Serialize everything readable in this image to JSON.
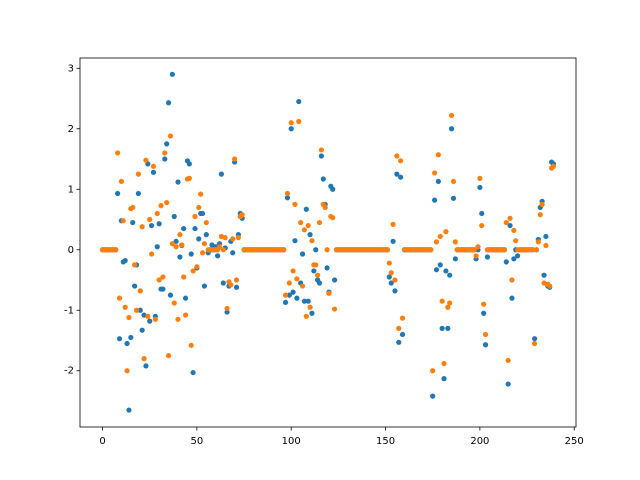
{
  "chart_data": {
    "type": "scatter",
    "x": [
      0,
      1,
      2,
      3,
      4,
      5,
      6,
      7,
      8,
      9,
      10,
      11,
      12,
      13,
      14,
      15,
      16,
      17,
      18,
      19,
      20,
      21,
      22,
      23,
      24,
      25,
      26,
      27,
      28,
      29,
      30,
      31,
      32,
      33,
      34,
      35,
      36,
      37,
      38,
      39,
      40,
      41,
      42,
      43,
      44,
      45,
      46,
      47,
      48,
      49,
      50,
      51,
      52,
      53,
      54,
      55,
      56,
      57,
      58,
      59,
      60,
      61,
      62,
      63,
      64,
      65,
      66,
      67,
      68,
      69,
      70,
      71,
      72,
      73,
      74,
      75,
      76,
      77,
      78,
      79,
      80,
      81,
      82,
      83,
      84,
      85,
      86,
      87,
      88,
      89,
      90,
      91,
      92,
      93,
      94,
      95,
      96,
      97,
      98,
      99,
      100,
      101,
      102,
      103,
      104,
      105,
      106,
      107,
      108,
      109,
      110,
      111,
      112,
      113,
      114,
      115,
      116,
      117,
      118,
      119,
      120,
      121,
      122,
      123,
      124,
      125,
      126,
      127,
      128,
      129,
      130,
      131,
      132,
      133,
      134,
      135,
      136,
      137,
      138,
      139,
      140,
      141,
      142,
      143,
      144,
      145,
      146,
      147,
      148,
      149,
      150,
      151,
      152,
      153,
      154,
      155,
      156,
      157,
      158,
      159,
      160,
      161,
      162,
      163,
      164,
      165,
      166,
      167,
      168,
      169,
      170,
      171,
      172,
      173,
      174,
      175,
      176,
      177,
      178,
      179,
      180,
      181,
      182,
      183,
      184,
      185,
      186,
      187,
      188,
      189,
      190,
      191,
      192,
      193,
      194,
      195,
      196,
      197,
      198,
      199,
      200,
      201,
      202,
      203,
      204,
      205,
      206,
      207,
      208,
      209,
      210,
      211,
      212,
      213,
      214,
      215,
      216,
      217,
      218,
      219,
      220,
      221,
      222,
      223,
      224,
      225,
      226,
      227,
      228,
      229,
      230,
      231,
      232,
      233,
      234,
      235,
      236,
      237,
      238,
      239
    ],
    "series": [
      {
        "color": "#1f77b4",
        "values": [
          0,
          0,
          0,
          0,
          0,
          0,
          0,
          0,
          0.93,
          -1.47,
          0.48,
          -0.2,
          -0.18,
          -1.55,
          -2.65,
          -1.45,
          0.45,
          -0.6,
          -0.25,
          0.93,
          -1.0,
          -1.33,
          -1.08,
          -1.92,
          1.42,
          -1.18,
          0.4,
          1.28,
          -1.1,
          0.05,
          0.43,
          -0.65,
          -0.65,
          1.5,
          1.75,
          2.43,
          -0.75,
          2.9,
          0.55,
          0.14,
          1.12,
          -0.12,
          0.07,
          0.35,
          -0.8,
          1.47,
          1.42,
          -0.07,
          -2.03,
          0.35,
          -0.3,
          0.18,
          0.6,
          0.6,
          -0.6,
          0.25,
          -0.05,
          0,
          0.08,
          0,
          0.05,
          -0.1,
          0.1,
          1.25,
          -0.55,
          0.03,
          -1.03,
          -0.6,
          0.14,
          -0.05,
          1.45,
          -0.62,
          0.25,
          0.6,
          0.52,
          0,
          0,
          0,
          0,
          0,
          0,
          0,
          0,
          0,
          0,
          0,
          0,
          0,
          0,
          0,
          0,
          0,
          0,
          0,
          0,
          0,
          0,
          -0.87,
          0.86,
          -0.75,
          2.0,
          -0.7,
          0.15,
          -0.8,
          2.45,
          -0.55,
          -0.07,
          -0.85,
          0.67,
          -0.85,
          0.25,
          -1.05,
          -0.35,
          0,
          -0.5,
          -0.55,
          1.55,
          1.17,
          0.75,
          -0.3,
          -0.7,
          1.05,
          1.0,
          -0.5,
          0,
          0,
          0,
          0,
          0,
          0,
          0,
          0,
          0,
          0,
          0,
          0,
          0,
          0,
          0,
          0,
          0,
          0,
          0,
          0,
          0,
          0,
          0,
          0,
          0,
          0,
          0,
          0,
          -0.45,
          -0.55,
          0.14,
          -0.68,
          1.25,
          -1.53,
          1.2,
          -1.4,
          0,
          0,
          0,
          0,
          0,
          0,
          0,
          0,
          0,
          0,
          0,
          0,
          0,
          0,
          0,
          -2.42,
          0.82,
          -0.33,
          1.13,
          -0.25,
          -1.3,
          -2.13,
          -0.35,
          -1.3,
          -0.42,
          2.0,
          0.85,
          -0.15,
          0,
          0,
          0,
          0,
          0,
          0,
          0,
          0,
          0,
          0,
          -0.15,
          0,
          1.03,
          0.6,
          -1.05,
          -1.57,
          -0.12,
          0,
          0,
          0,
          0,
          0,
          0,
          0,
          0,
          0,
          -0.2,
          -2.22,
          0.4,
          -0.8,
          -0.15,
          0,
          -0.1,
          0,
          0,
          0,
          0,
          0,
          0,
          0,
          0,
          -1.47,
          0,
          0.17,
          0.7,
          0.8,
          -0.42,
          0.22,
          -0.6,
          -0.62,
          1.45,
          1.42
        ]
      },
      {
        "color": "#ff7f0e",
        "values": [
          0,
          0,
          0,
          0,
          0,
          0,
          0,
          0,
          1.6,
          -0.8,
          1.13,
          0.48,
          -0.95,
          -2.0,
          -1.12,
          0.68,
          0.7,
          -0.25,
          -1.0,
          1.25,
          -0.68,
          0.38,
          -1.8,
          1.48,
          -1.1,
          0.5,
          -0.07,
          1.38,
          -1.15,
          0.6,
          -0.5,
          0.73,
          -0.45,
          1.6,
          0.78,
          -1.75,
          1.88,
          0.1,
          -0.88,
          0.05,
          -1.15,
          0.25,
          0.08,
          -0.45,
          -1.08,
          1.17,
          1.18,
          -1.58,
          -0.35,
          0.55,
          -0.28,
          0.7,
          0.92,
          -0.05,
          0.1,
          0.45,
          0,
          0,
          0,
          0,
          0,
          0,
          0.05,
          0.22,
          0,
          0.2,
          -0.97,
          -0.53,
          -0.58,
          0.18,
          1.5,
          -0.5,
          0.2,
          0.55,
          0.58,
          0,
          0,
          0,
          0,
          0,
          0,
          0,
          0,
          0,
          0,
          0,
          0,
          0,
          0,
          0,
          0,
          0,
          0,
          0,
          0,
          0,
          0,
          -0.75,
          0.93,
          -0.55,
          2.1,
          -0.35,
          0.75,
          -0.48,
          2.12,
          0.45,
          -0.6,
          0.33,
          -1.1,
          0.4,
          -0.95,
          0.15,
          -0.25,
          -0.25,
          -0.42,
          0.45,
          1.65,
          0.75,
          0.7,
          0,
          -0.72,
          0.55,
          0.53,
          -0.98,
          0,
          0,
          0,
          0,
          0,
          0,
          0,
          0,
          0,
          0,
          0,
          0,
          0,
          0,
          0,
          0,
          0,
          0,
          0,
          0,
          0,
          0,
          0,
          0,
          0,
          0,
          0,
          0,
          -0.22,
          -0.38,
          0.42,
          -0.5,
          1.55,
          -1.3,
          1.47,
          -1.13,
          0,
          0,
          0,
          0,
          0,
          0,
          0,
          0,
          0,
          0,
          0,
          0,
          0,
          0,
          0,
          -2.0,
          1.27,
          0.13,
          1.57,
          0.22,
          -0.85,
          -1.88,
          0.3,
          -0.95,
          -0.88,
          2.22,
          1.13,
          0.13,
          0,
          0,
          0,
          0,
          0,
          0,
          0,
          0,
          0,
          0,
          -0.1,
          0.05,
          1.18,
          0.4,
          -0.9,
          -1.4,
          0,
          0,
          0,
          0,
          0,
          0,
          0,
          0,
          0,
          0,
          0.45,
          -1.83,
          0.52,
          -0.5,
          0.32,
          0.15,
          0,
          0,
          0,
          0,
          0,
          0,
          0,
          0,
          0,
          -1.55,
          0,
          0.13,
          0.58,
          0.75,
          -0.55,
          0.07,
          -0.57,
          -0.6,
          1.35,
          1.38
        ]
      }
    ],
    "xlim": [
      -11.95,
      250.95
    ],
    "xticks": [
      0,
      50,
      100,
      150,
      200,
      250
    ],
    "ylim": [
      -2.93,
      3.17
    ],
    "yticks": [
      -2,
      -1,
      0,
      1,
      2,
      3
    ],
    "grid": false
  }
}
